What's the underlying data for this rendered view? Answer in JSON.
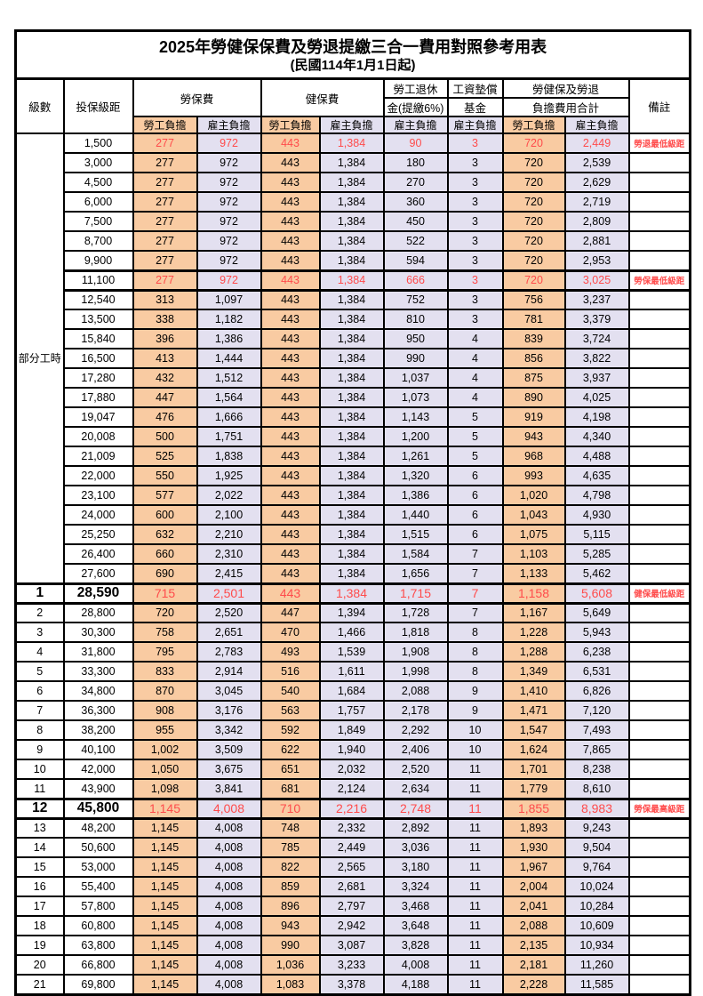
{
  "title": {
    "line1": "2025年勞健保保費及勞退提繳三合一費用對照參考用表",
    "line2": "(民國114年1月1日起)"
  },
  "header": {
    "level": "級數",
    "bracket": "投保級距",
    "labor_group": "勞保費",
    "health_group": "健保費",
    "pension_line1": "勞工退休",
    "pension_line2": "金(提繳6%)",
    "fund_line1": "工資墊償",
    "fund_line2": "基金",
    "total_line1": "勞健保及勞退",
    "total_line2": "負擔費用合計",
    "remark": "備註",
    "employee_label": "勞工負擔",
    "employer_label": "雇主負擔"
  },
  "colors": {
    "employee_bg": "#F9CBA2",
    "employer_bg": "#E3E0F0",
    "highlight_text": "#FF4B4B"
  },
  "table": {
    "part_time_label": "部分工時",
    "part_time_rowspan": 23,
    "value_columns": [
      "勞保費-勞工負擔",
      "勞保費-雇主負擔",
      "健保費-勞工負擔",
      "健保費-雇主負擔",
      "勞工退休金-雇主負擔",
      "工資墊償基金-雇主負擔",
      "合計-勞工負擔",
      "合計-雇主負擔"
    ],
    "rows": [
      {
        "level": "",
        "bracket": "1,500",
        "values": [
          "277",
          "972",
          "443",
          "1,384",
          "90",
          "3",
          "720",
          "2,449"
        ],
        "remark": "勞退最低級距",
        "flags": "hl"
      },
      {
        "level": "",
        "bracket": "3,000",
        "values": [
          "277",
          "972",
          "443",
          "1,384",
          "180",
          "3",
          "720",
          "2,539"
        ],
        "remark": "",
        "flags": ""
      },
      {
        "level": "",
        "bracket": "4,500",
        "values": [
          "277",
          "972",
          "443",
          "1,384",
          "270",
          "3",
          "720",
          "2,629"
        ],
        "remark": "",
        "flags": ""
      },
      {
        "level": "",
        "bracket": "6,000",
        "values": [
          "277",
          "972",
          "443",
          "1,384",
          "360",
          "3",
          "720",
          "2,719"
        ],
        "remark": "",
        "flags": ""
      },
      {
        "level": "",
        "bracket": "7,500",
        "values": [
          "277",
          "972",
          "443",
          "1,384",
          "450",
          "3",
          "720",
          "2,809"
        ],
        "remark": "",
        "flags": ""
      },
      {
        "level": "",
        "bracket": "8,700",
        "values": [
          "277",
          "972",
          "443",
          "1,384",
          "522",
          "3",
          "720",
          "2,881"
        ],
        "remark": "",
        "flags": ""
      },
      {
        "level": "",
        "bracket": "9,900",
        "values": [
          "277",
          "972",
          "443",
          "1,384",
          "594",
          "3",
          "720",
          "2,953"
        ],
        "remark": "",
        "flags": ""
      },
      {
        "level": "",
        "bracket": "11,100",
        "values": [
          "277",
          "972",
          "443",
          "1,384",
          "666",
          "3",
          "720",
          "3,025"
        ],
        "remark": "勞保最低級距",
        "flags": "hl thick"
      },
      {
        "level": "",
        "bracket": "12,540",
        "values": [
          "313",
          "1,097",
          "443",
          "1,384",
          "752",
          "3",
          "756",
          "3,237"
        ],
        "remark": "",
        "flags": ""
      },
      {
        "level": "",
        "bracket": "13,500",
        "values": [
          "338",
          "1,182",
          "443",
          "1,384",
          "810",
          "3",
          "781",
          "3,379"
        ],
        "remark": "",
        "flags": ""
      },
      {
        "level": "",
        "bracket": "15,840",
        "values": [
          "396",
          "1,386",
          "443",
          "1,384",
          "950",
          "4",
          "839",
          "3,724"
        ],
        "remark": "",
        "flags": ""
      },
      {
        "level": "",
        "bracket": "16,500",
        "values": [
          "413",
          "1,444",
          "443",
          "1,384",
          "990",
          "4",
          "856",
          "3,822"
        ],
        "remark": "",
        "flags": ""
      },
      {
        "level": "",
        "bracket": "17,280",
        "values": [
          "432",
          "1,512",
          "443",
          "1,384",
          "1,037",
          "4",
          "875",
          "3,937"
        ],
        "remark": "",
        "flags": ""
      },
      {
        "level": "",
        "bracket": "17,880",
        "values": [
          "447",
          "1,564",
          "443",
          "1,384",
          "1,073",
          "4",
          "890",
          "4,025"
        ],
        "remark": "",
        "flags": ""
      },
      {
        "level": "",
        "bracket": "19,047",
        "values": [
          "476",
          "1,666",
          "443",
          "1,384",
          "1,143",
          "5",
          "919",
          "4,198"
        ],
        "remark": "",
        "flags": ""
      },
      {
        "level": "",
        "bracket": "20,008",
        "values": [
          "500",
          "1,751",
          "443",
          "1,384",
          "1,200",
          "5",
          "943",
          "4,340"
        ],
        "remark": "",
        "flags": ""
      },
      {
        "level": "",
        "bracket": "21,009",
        "values": [
          "525",
          "1,838",
          "443",
          "1,384",
          "1,261",
          "5",
          "968",
          "4,488"
        ],
        "remark": "",
        "flags": ""
      },
      {
        "level": "",
        "bracket": "22,000",
        "values": [
          "550",
          "1,925",
          "443",
          "1,384",
          "1,320",
          "6",
          "993",
          "4,635"
        ],
        "remark": "",
        "flags": ""
      },
      {
        "level": "",
        "bracket": "23,100",
        "values": [
          "577",
          "2,022",
          "443",
          "1,384",
          "1,386",
          "6",
          "1,020",
          "4,798"
        ],
        "remark": "",
        "flags": ""
      },
      {
        "level": "",
        "bracket": "24,000",
        "values": [
          "600",
          "2,100",
          "443",
          "1,384",
          "1,440",
          "6",
          "1,043",
          "4,930"
        ],
        "remark": "",
        "flags": ""
      },
      {
        "level": "",
        "bracket": "25,250",
        "values": [
          "632",
          "2,210",
          "443",
          "1,384",
          "1,515",
          "6",
          "1,075",
          "5,115"
        ],
        "remark": "",
        "flags": ""
      },
      {
        "level": "",
        "bracket": "26,400",
        "values": [
          "660",
          "2,310",
          "443",
          "1,384",
          "1,584",
          "7",
          "1,103",
          "5,285"
        ],
        "remark": "",
        "flags": ""
      },
      {
        "level": "",
        "bracket": "27,600",
        "values": [
          "690",
          "2,415",
          "443",
          "1,384",
          "1,656",
          "7",
          "1,133",
          "5,462"
        ],
        "remark": "",
        "flags": ""
      },
      {
        "level": "1",
        "bracket": "28,590",
        "values": [
          "715",
          "2,501",
          "443",
          "1,384",
          "1,715",
          "7",
          "1,158",
          "5,608"
        ],
        "remark": "健保最低級距",
        "flags": "hl big thick"
      },
      {
        "level": "2",
        "bracket": "28,800",
        "values": [
          "720",
          "2,520",
          "447",
          "1,394",
          "1,728",
          "7",
          "1,167",
          "5,649"
        ],
        "remark": "",
        "flags": ""
      },
      {
        "level": "3",
        "bracket": "30,300",
        "values": [
          "758",
          "2,651",
          "470",
          "1,466",
          "1,818",
          "8",
          "1,228",
          "5,943"
        ],
        "remark": "",
        "flags": ""
      },
      {
        "level": "4",
        "bracket": "31,800",
        "values": [
          "795",
          "2,783",
          "493",
          "1,539",
          "1,908",
          "8",
          "1,288",
          "6,238"
        ],
        "remark": "",
        "flags": ""
      },
      {
        "level": "5",
        "bracket": "33,300",
        "values": [
          "833",
          "2,914",
          "516",
          "1,611",
          "1,998",
          "8",
          "1,349",
          "6,531"
        ],
        "remark": "",
        "flags": ""
      },
      {
        "level": "6",
        "bracket": "34,800",
        "values": [
          "870",
          "3,045",
          "540",
          "1,684",
          "2,088",
          "9",
          "1,410",
          "6,826"
        ],
        "remark": "",
        "flags": ""
      },
      {
        "level": "7",
        "bracket": "36,300",
        "values": [
          "908",
          "3,176",
          "563",
          "1,757",
          "2,178",
          "9",
          "1,471",
          "7,120"
        ],
        "remark": "",
        "flags": ""
      },
      {
        "level": "8",
        "bracket": "38,200",
        "values": [
          "955",
          "3,342",
          "592",
          "1,849",
          "2,292",
          "10",
          "1,547",
          "7,493"
        ],
        "remark": "",
        "flags": ""
      },
      {
        "level": "9",
        "bracket": "40,100",
        "values": [
          "1,002",
          "3,509",
          "622",
          "1,940",
          "2,406",
          "10",
          "1,624",
          "7,865"
        ],
        "remark": "",
        "flags": ""
      },
      {
        "level": "10",
        "bracket": "42,000",
        "values": [
          "1,050",
          "3,675",
          "651",
          "2,032",
          "2,520",
          "11",
          "1,701",
          "8,238"
        ],
        "remark": "",
        "flags": ""
      },
      {
        "level": "11",
        "bracket": "43,900",
        "values": [
          "1,098",
          "3,841",
          "681",
          "2,124",
          "2,634",
          "11",
          "1,779",
          "8,610"
        ],
        "remark": "",
        "flags": ""
      },
      {
        "level": "12",
        "bracket": "45,800",
        "values": [
          "1,145",
          "4,008",
          "710",
          "2,216",
          "2,748",
          "11",
          "1,855",
          "8,983"
        ],
        "remark": "勞保最高級距",
        "flags": "hl big thick"
      },
      {
        "level": "13",
        "bracket": "48,200",
        "values": [
          "1,145",
          "4,008",
          "748",
          "2,332",
          "2,892",
          "11",
          "1,893",
          "9,243"
        ],
        "remark": "",
        "flags": ""
      },
      {
        "level": "14",
        "bracket": "50,600",
        "values": [
          "1,145",
          "4,008",
          "785",
          "2,449",
          "3,036",
          "11",
          "1,930",
          "9,504"
        ],
        "remark": "",
        "flags": ""
      },
      {
        "level": "15",
        "bracket": "53,000",
        "values": [
          "1,145",
          "4,008",
          "822",
          "2,565",
          "3,180",
          "11",
          "1,967",
          "9,764"
        ],
        "remark": "",
        "flags": ""
      },
      {
        "level": "16",
        "bracket": "55,400",
        "values": [
          "1,145",
          "4,008",
          "859",
          "2,681",
          "3,324",
          "11",
          "2,004",
          "10,024"
        ],
        "remark": "",
        "flags": ""
      },
      {
        "level": "17",
        "bracket": "57,800",
        "values": [
          "1,145",
          "4,008",
          "896",
          "2,797",
          "3,468",
          "11",
          "2,041",
          "10,284"
        ],
        "remark": "",
        "flags": ""
      },
      {
        "level": "18",
        "bracket": "60,800",
        "values": [
          "1,145",
          "4,008",
          "943",
          "2,942",
          "3,648",
          "11",
          "2,088",
          "10,609"
        ],
        "remark": "",
        "flags": ""
      },
      {
        "level": "19",
        "bracket": "63,800",
        "values": [
          "1,145",
          "4,008",
          "990",
          "3,087",
          "3,828",
          "11",
          "2,135",
          "10,934"
        ],
        "remark": "",
        "flags": ""
      },
      {
        "level": "20",
        "bracket": "66,800",
        "values": [
          "1,145",
          "4,008",
          "1,036",
          "3,233",
          "4,008",
          "11",
          "2,181",
          "11,260"
        ],
        "remark": "",
        "flags": ""
      },
      {
        "level": "21",
        "bracket": "69,800",
        "values": [
          "1,145",
          "4,008",
          "1,083",
          "3,378",
          "4,188",
          "11",
          "2,228",
          "11,585"
        ],
        "remark": "",
        "flags": ""
      }
    ]
  }
}
